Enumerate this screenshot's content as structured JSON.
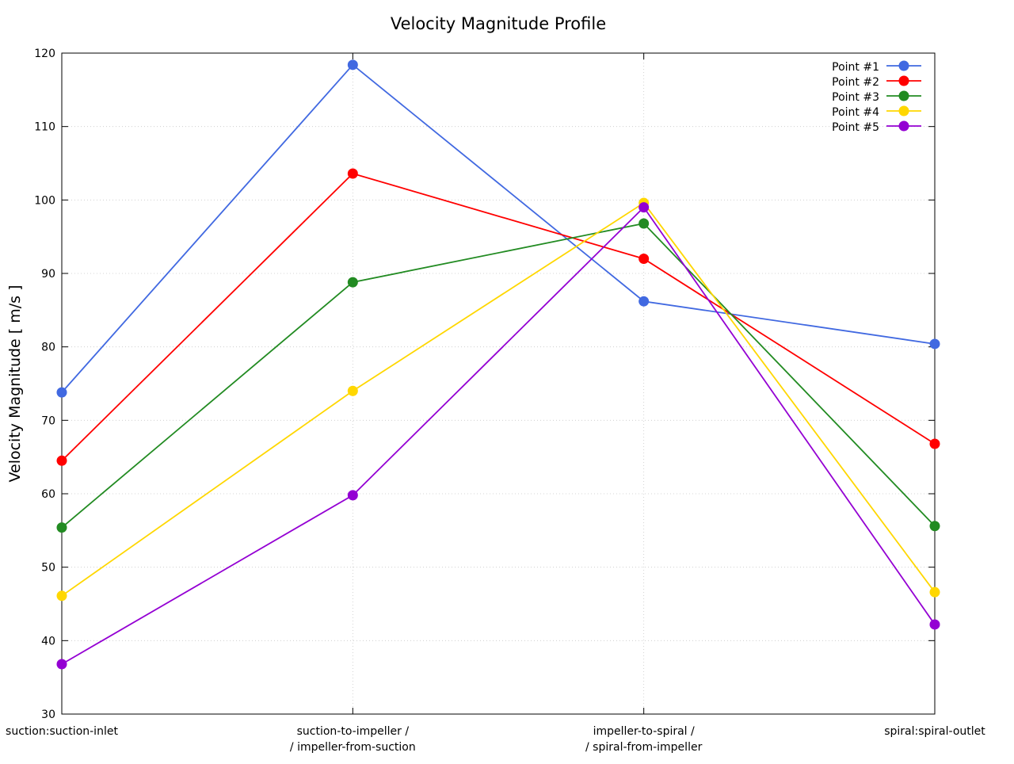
{
  "chart_data": {
    "type": "line",
    "title": "Velocity Magnitude Profile",
    "xlabel": "",
    "ylabel": "Velocity Magnitude [ m/s ]",
    "ylim": [
      30,
      120
    ],
    "yticks": [
      30,
      40,
      50,
      60,
      70,
      80,
      90,
      100,
      110,
      120
    ],
    "grid": true,
    "legend_placement": "top-right",
    "categories": [
      [
        "suction:suction-inlet"
      ],
      [
        "suction-to-impeller /",
        "/ impeller-from-suction"
      ],
      [
        "impeller-to-spiral /",
        "/ spiral-from-impeller"
      ],
      [
        "spiral:spiral-outlet"
      ]
    ],
    "series": [
      {
        "name": "Point #1",
        "color": "#4169e1",
        "values": [
          73.8,
          118.4,
          86.2,
          80.4
        ]
      },
      {
        "name": "Point #2",
        "color": "#ff0000",
        "values": [
          64.5,
          103.6,
          92.0,
          66.8
        ]
      },
      {
        "name": "Point #3",
        "color": "#228b22",
        "values": [
          55.4,
          88.8,
          96.8,
          55.6
        ]
      },
      {
        "name": "Point #4",
        "color": "#ffd700",
        "values": [
          46.1,
          74.0,
          99.6,
          46.6
        ]
      },
      {
        "name": "Point #5",
        "color": "#9400d3",
        "values": [
          36.8,
          59.8,
          99.0,
          42.2
        ]
      }
    ]
  }
}
